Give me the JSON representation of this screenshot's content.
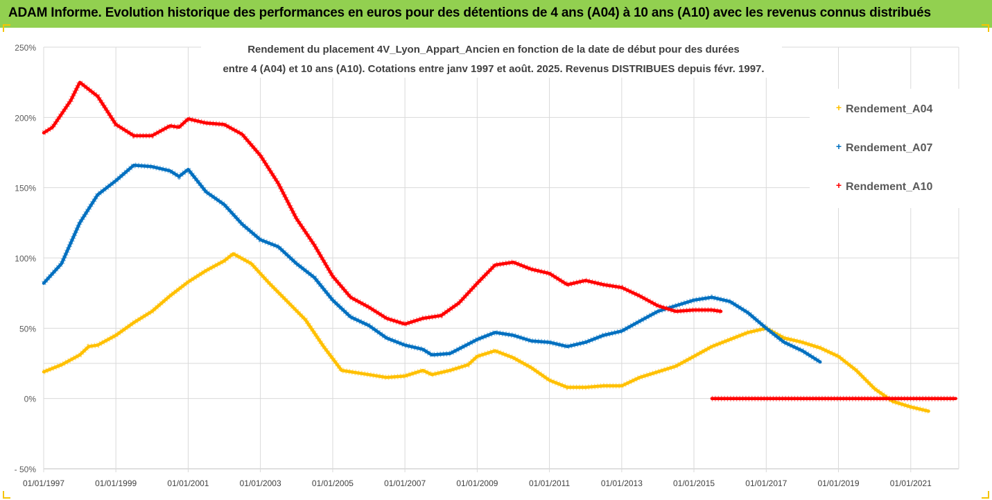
{
  "banner": {
    "title": "ADAM Informe. Evolution historique des performances en euros pour des détentions de 4 ans (A04) à 10 ans (A10) avec les revenus connus distribués",
    "background": "#92d050"
  },
  "chart_data": {
    "type": "line",
    "title_lines": [
      "Rendement du placement 4V_Lyon_Appart_Ancien en fonction de la date de début pour des durées",
      "entre 4 (A04) et 10 ans (A10). Cotations entre janv 1997 et août. 2025. Revenus DISTRIBUES depuis févr. 1997."
    ],
    "xlabel": "",
    "ylabel": "",
    "x_ticks": [
      "01/01/1997",
      "01/01/1999",
      "01/01/2001",
      "01/01/2003",
      "01/01/2005",
      "01/01/2007",
      "01/01/2009",
      "01/01/2011",
      "01/01/2013",
      "01/01/2015",
      "01/01/2017",
      "01/01/2019",
      "01/01/2021"
    ],
    "x_range": [
      "1997-01-01",
      "2022-05-01"
    ],
    "y_ticks": [
      "250%",
      "200%",
      "150%",
      "100%",
      "50%",
      "0%",
      "- 50%"
    ],
    "ylim": [
      -0.5,
      2.5
    ],
    "grid": "horizontal",
    "legend_position": "top-right",
    "series": [
      {
        "name": "Rendement_A04",
        "color": "#ffc000",
        "points": [
          [
            "1997-01-01",
            0.19
          ],
          [
            "1997-07-01",
            0.24
          ],
          [
            "1998-01-01",
            0.31
          ],
          [
            "1998-04-01",
            0.37
          ],
          [
            "1998-07-01",
            0.38
          ],
          [
            "1999-01-01",
            0.45
          ],
          [
            "1999-07-01",
            0.54
          ],
          [
            "2000-01-01",
            0.62
          ],
          [
            "2000-07-01",
            0.73
          ],
          [
            "2001-01-01",
            0.83
          ],
          [
            "2001-07-01",
            0.91
          ],
          [
            "2002-01-01",
            0.98
          ],
          [
            "2002-04-01",
            1.03
          ],
          [
            "2002-10-01",
            0.96
          ],
          [
            "2003-04-01",
            0.82
          ],
          [
            "2003-10-01",
            0.69
          ],
          [
            "2004-04-01",
            0.56
          ],
          [
            "2004-10-01",
            0.37
          ],
          [
            "2005-04-01",
            0.2
          ],
          [
            "2006-01-01",
            0.17
          ],
          [
            "2006-07-01",
            0.15
          ],
          [
            "2007-01-01",
            0.16
          ],
          [
            "2007-07-01",
            0.2
          ],
          [
            "2007-10-01",
            0.17
          ],
          [
            "2008-04-01",
            0.2
          ],
          [
            "2008-10-01",
            0.24
          ],
          [
            "2009-01-01",
            0.3
          ],
          [
            "2009-07-01",
            0.34
          ],
          [
            "2010-01-01",
            0.29
          ],
          [
            "2010-07-01",
            0.22
          ],
          [
            "2011-01-01",
            0.13
          ],
          [
            "2011-07-01",
            0.08
          ],
          [
            "2012-01-01",
            0.08
          ],
          [
            "2012-07-01",
            0.09
          ],
          [
            "2013-01-01",
            0.09
          ],
          [
            "2013-07-01",
            0.15
          ],
          [
            "2014-01-01",
            0.19
          ],
          [
            "2014-07-01",
            0.23
          ],
          [
            "2015-01-01",
            0.3
          ],
          [
            "2015-07-01",
            0.37
          ],
          [
            "2016-01-01",
            0.42
          ],
          [
            "2016-07-01",
            0.47
          ],
          [
            "2017-01-01",
            0.5
          ],
          [
            "2017-07-01",
            0.43
          ],
          [
            "2018-01-01",
            0.4
          ],
          [
            "2018-07-01",
            0.36
          ],
          [
            "2019-01-01",
            0.3
          ],
          [
            "2019-07-01",
            0.2
          ],
          [
            "2020-01-01",
            0.07
          ],
          [
            "2020-07-01",
            -0.02
          ],
          [
            "2021-01-01",
            -0.06
          ],
          [
            "2021-07-01",
            -0.09
          ]
        ]
      },
      {
        "name": "Rendement_A07",
        "color": "#0070c0",
        "points": [
          [
            "1997-01-01",
            0.82
          ],
          [
            "1997-07-01",
            0.96
          ],
          [
            "1998-01-01",
            1.25
          ],
          [
            "1998-07-01",
            1.45
          ],
          [
            "1999-01-01",
            1.55
          ],
          [
            "1999-07-01",
            1.66
          ],
          [
            "2000-01-01",
            1.65
          ],
          [
            "2000-07-01",
            1.62
          ],
          [
            "2000-10-01",
            1.58
          ],
          [
            "2001-01-01",
            1.63
          ],
          [
            "2001-07-01",
            1.47
          ],
          [
            "2002-01-01",
            1.38
          ],
          [
            "2002-07-01",
            1.24
          ],
          [
            "2003-01-01",
            1.13
          ],
          [
            "2003-07-01",
            1.08
          ],
          [
            "2004-01-01",
            0.96
          ],
          [
            "2004-07-01",
            0.86
          ],
          [
            "2005-01-01",
            0.7
          ],
          [
            "2005-07-01",
            0.58
          ],
          [
            "2006-01-01",
            0.52
          ],
          [
            "2006-07-01",
            0.43
          ],
          [
            "2007-01-01",
            0.38
          ],
          [
            "2007-07-01",
            0.35
          ],
          [
            "2007-10-01",
            0.31
          ],
          [
            "2008-04-01",
            0.32
          ],
          [
            "2009-01-01",
            0.42
          ],
          [
            "2009-07-01",
            0.47
          ],
          [
            "2010-01-01",
            0.45
          ],
          [
            "2010-07-01",
            0.41
          ],
          [
            "2011-01-01",
            0.4
          ],
          [
            "2011-07-01",
            0.37
          ],
          [
            "2012-01-01",
            0.4
          ],
          [
            "2012-07-01",
            0.45
          ],
          [
            "2013-01-01",
            0.48
          ],
          [
            "2013-07-01",
            0.55
          ],
          [
            "2014-01-01",
            0.62
          ],
          [
            "2014-07-01",
            0.66
          ],
          [
            "2015-01-01",
            0.7
          ],
          [
            "2015-07-01",
            0.72
          ],
          [
            "2016-01-01",
            0.69
          ],
          [
            "2016-07-01",
            0.61
          ],
          [
            "2017-01-01",
            0.5
          ],
          [
            "2017-07-01",
            0.4
          ],
          [
            "2018-01-01",
            0.34
          ],
          [
            "2018-07-01",
            0.26
          ]
        ]
      },
      {
        "name": "Rendement_A10",
        "color": "#ff0000",
        "points": [
          [
            "1997-01-01",
            1.89
          ],
          [
            "1997-04-01",
            1.93
          ],
          [
            "1997-10-01",
            2.12
          ],
          [
            "1998-01-01",
            2.25
          ],
          [
            "1998-07-01",
            2.15
          ],
          [
            "1999-01-01",
            1.95
          ],
          [
            "1999-07-01",
            1.87
          ],
          [
            "2000-01-01",
            1.87
          ],
          [
            "2000-07-01",
            1.94
          ],
          [
            "2000-10-01",
            1.93
          ],
          [
            "2001-01-01",
            1.99
          ],
          [
            "2001-07-01",
            1.96
          ],
          [
            "2002-01-01",
            1.95
          ],
          [
            "2002-07-01",
            1.88
          ],
          [
            "2003-01-01",
            1.73
          ],
          [
            "2003-07-01",
            1.53
          ],
          [
            "2004-01-01",
            1.28
          ],
          [
            "2004-07-01",
            1.09
          ],
          [
            "2005-01-01",
            0.87
          ],
          [
            "2005-07-01",
            0.72
          ],
          [
            "2006-01-01",
            0.65
          ],
          [
            "2006-07-01",
            0.57
          ],
          [
            "2007-01-01",
            0.53
          ],
          [
            "2007-07-01",
            0.57
          ],
          [
            "2008-01-01",
            0.59
          ],
          [
            "2008-07-01",
            0.68
          ],
          [
            "2009-01-01",
            0.82
          ],
          [
            "2009-07-01",
            0.95
          ],
          [
            "2010-01-01",
            0.97
          ],
          [
            "2010-07-01",
            0.92
          ],
          [
            "2011-01-01",
            0.89
          ],
          [
            "2011-07-01",
            0.81
          ],
          [
            "2012-01-01",
            0.84
          ],
          [
            "2012-07-01",
            0.81
          ],
          [
            "2013-01-01",
            0.79
          ],
          [
            "2013-07-01",
            0.73
          ],
          [
            "2014-01-01",
            0.66
          ],
          [
            "2014-07-01",
            0.62
          ],
          [
            "2015-01-01",
            0.63
          ],
          [
            "2015-07-01",
            0.63
          ],
          [
            "2015-10-01",
            0.62
          ]
        ]
      },
      {
        "name": "",
        "color": "#ff0000",
        "points": [
          [
            "2015-07-01",
            0.0
          ],
          [
            "2022-04-01",
            0.0
          ]
        ]
      }
    ]
  }
}
